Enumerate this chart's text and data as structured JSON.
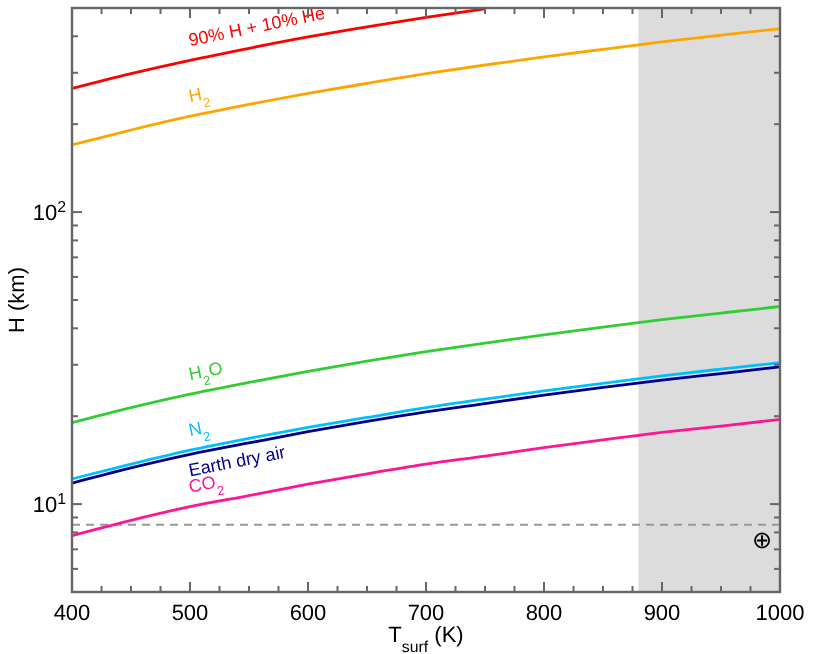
{
  "chart_data": {
    "type": "line",
    "xlabel": "T$_{surf}$ (K)",
    "ylabel": "H (km)",
    "log": "y",
    "grid": false,
    "legend": false,
    "marker": "none",
    "line_style": "solid",
    "xlim": [
      400,
      1000
    ],
    "xticks": [
      400,
      {
        "value": 425,
        "label": null
      },
      {
        "value": 450,
        "label": null
      },
      {
        "value": 475,
        "label": null
      },
      500,
      {
        "value": 525,
        "label": null
      },
      {
        "value": 550,
        "label": null
      },
      {
        "value": 575,
        "label": null
      },
      600,
      {
        "value": 625,
        "label": null
      },
      {
        "value": 650,
        "label": null
      },
      {
        "value": 675,
        "label": null
      },
      700,
      {
        "value": 725,
        "label": null
      },
      {
        "value": 750,
        "label": null
      },
      {
        "value": 775,
        "label": null
      },
      800,
      {
        "value": 825,
        "label": null
      },
      {
        "value": 850,
        "label": null
      },
      {
        "value": 875,
        "label": null
      },
      900,
      {
        "value": 925,
        "label": null
      },
      {
        "value": 950,
        "label": null
      },
      {
        "value": 975,
        "label": null
      },
      1000
    ],
    "ylim": [
      5,
      500
    ],
    "yticks": [
      {
        "value": 6,
        "label": null
      },
      {
        "value": 7,
        "label": null
      },
      {
        "value": 8,
        "label": null
      },
      {
        "value": 9,
        "label": null
      },
      {
        "value": 10,
        "label": "10$^{1}$"
      },
      {
        "value": 20,
        "label": null
      },
      {
        "value": 30,
        "label": null
      },
      {
        "value": 40,
        "label": null
      },
      {
        "value": 50,
        "label": null
      },
      {
        "value": 60,
        "label": null
      },
      {
        "value": 70,
        "label": null
      },
      {
        "value": 80,
        "label": null
      },
      {
        "value": 90,
        "label": null
      },
      {
        "value": 100,
        "label": "10$^{2}$"
      },
      {
        "value": 200,
        "label": null
      },
      {
        "value": 300,
        "label": null
      },
      {
        "value": 400,
        "label": null
      }
    ],
    "bands": [
      {
        "axis": "x",
        "from": 880,
        "to": 1000,
        "color": "#dcdcdc"
      }
    ],
    "ref_lines": [
      {
        "axis": "y",
        "value": 8.5,
        "color": "#999999",
        "line_style": "dashed"
      }
    ],
    "annotations": [
      "⊕"
    ],
    "x": [
      400,
      450,
      500,
      550,
      600,
      650,
      700,
      750,
      800,
      850,
      900,
      950,
      1000
    ],
    "series": [
      {
        "name": "90% H + 10% He",
        "color": "#ff0000",
        "x": [
          400,
          450,
          500,
          550,
          600,
          650,
          700,
          750
        ],
        "values": [
          265,
          298,
          331,
          364,
          398,
          431,
          464,
          497
        ]
      },
      {
        "name": "H$_{2}$",
        "color": "#ffa500",
        "values": [
          170,
          191,
          213,
          234,
          255,
          276,
          298,
          319,
          340,
          361,
          383,
          404,
          425
        ]
      },
      {
        "name": "H$_{2}$O",
        "color": "#33cc33",
        "values": [
          19,
          21.4,
          23.8,
          26.1,
          28.5,
          30.9,
          33.3,
          35.6,
          38,
          40.4,
          42.8,
          45.1,
          47.5
        ]
      },
      {
        "name": "N$_{2}$",
        "color": "#00bfff",
        "values": [
          12.2,
          13.7,
          15.3,
          16.8,
          18.3,
          19.8,
          21.4,
          22.9,
          24.4,
          25.9,
          27.5,
          29,
          30.5
        ]
      },
      {
        "name": "Earth dry air",
        "color": "#00008b",
        "values": [
          11.8,
          13.3,
          14.8,
          16.2,
          17.7,
          19.2,
          20.7,
          22.1,
          23.6,
          25.1,
          26.6,
          28,
          29.5
        ]
      },
      {
        "name": "CO$_{2}$",
        "color": "#ff1493",
        "values": [
          7.8,
          8.8,
          9.8,
          10.7,
          11.7,
          12.7,
          13.7,
          14.6,
          15.6,
          16.6,
          17.6,
          18.5,
          19.5
        ]
      }
    ]
  }
}
